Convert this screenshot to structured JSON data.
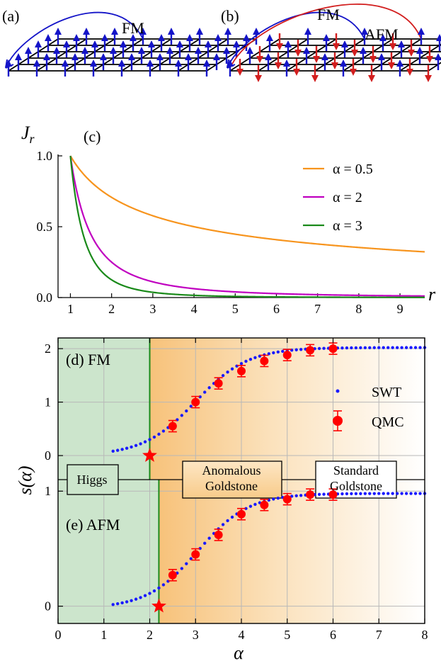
{
  "panels": {
    "a": {
      "label": "(a)",
      "text": "FM"
    },
    "b": {
      "label": "(b)",
      "text_fm": "FM",
      "text_afm": "AFM"
    },
    "c": {
      "label": "(c)"
    },
    "d": {
      "label": "(d) FM"
    },
    "e": {
      "label": "(e) AFM"
    }
  },
  "phases": {
    "higgs": "Higgs",
    "anomalous_1": "Anomalous",
    "anomalous_2": "Goldstone",
    "standard_1": "Standard",
    "standard_2": "Goldstone"
  },
  "colors": {
    "fm_arrow": "#1414c8",
    "afm_arrow": "#d21e1e",
    "orange": "#f7941d",
    "magenta": "#c000c0",
    "green": "#1a8a1a",
    "higgs_bg": "#cce5cc",
    "swt": "#1a1aff",
    "qmc": "#ff0000"
  },
  "chart_data": [
    {
      "type": "line",
      "panel": "(c)",
      "ylabel": "J_r",
      "xlabel": "r",
      "xlim": [
        0.7,
        9.6
      ],
      "ylim": [
        0,
        1.0
      ],
      "xticks": [
        1,
        2,
        3,
        4,
        5,
        6,
        7,
        8,
        9
      ],
      "yticks": [
        0.0,
        0.5,
        1.0
      ],
      "ytick_labels": [
        "0.0",
        "0.5",
        "1.0"
      ],
      "legend": "top-right",
      "series": [
        {
          "name": "α = 0.5",
          "alpha": 0.5,
          "color": "#f7941d"
        },
        {
          "name": "α = 2",
          "alpha": 2,
          "color": "#c000c0"
        },
        {
          "name": "α = 3",
          "alpha": 3,
          "color": "#1a8a1a"
        }
      ]
    },
    {
      "type": "scatter",
      "panels": [
        "(d) FM",
        "(e) AFM"
      ],
      "ylabel": "s(α)",
      "xlabel": "α",
      "xlim": [
        0,
        8
      ],
      "xticks": [
        0,
        1,
        2,
        3,
        4,
        5,
        6,
        7,
        8
      ],
      "grid": true,
      "legend": "right",
      "legend_entries": [
        "SWT",
        "QMC"
      ],
      "fm": {
        "ylim": [
          -0.45,
          2.2
        ],
        "yticks": [
          0,
          1,
          2
        ],
        "boundary": 2.0,
        "star": [
          2.0,
          0.0
        ],
        "qmc": [
          [
            2.5,
            0.55
          ],
          [
            3.0,
            1.0
          ],
          [
            3.5,
            1.35
          ],
          [
            4.0,
            1.58
          ],
          [
            4.5,
            1.77
          ],
          [
            5.0,
            1.88
          ],
          [
            5.5,
            1.97
          ],
          [
            6.0,
            2.0
          ]
        ],
        "swt_start": 1.2,
        "swt_end": 8.0,
        "swt_step": 0.1
      },
      "afm": {
        "ylim": [
          -0.15,
          1.1
        ],
        "yticks": [
          0,
          1
        ],
        "boundary": 2.2,
        "star": [
          2.2,
          0.0
        ],
        "qmc": [
          [
            2.5,
            0.27
          ],
          [
            3.0,
            0.45
          ],
          [
            3.5,
            0.62
          ],
          [
            4.0,
            0.8
          ],
          [
            4.5,
            0.88
          ],
          [
            5.0,
            0.93
          ],
          [
            5.5,
            0.97
          ],
          [
            6.0,
            0.97
          ]
        ],
        "swt_start": 1.2,
        "swt_end": 8.0,
        "swt_step": 0.1
      }
    }
  ]
}
